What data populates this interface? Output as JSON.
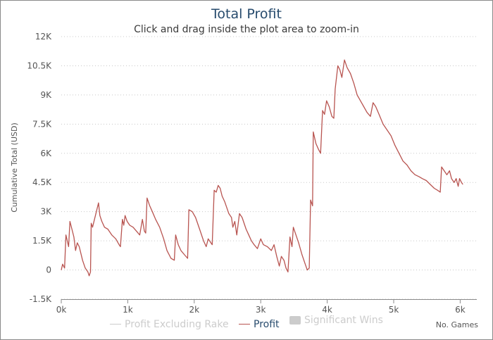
{
  "chart_data": {
    "type": "line",
    "title": "Total Profit",
    "subtitle": "Click and drag inside the plot area to zoom-in",
    "ylabel": "Cumulative Total (USD)",
    "xlabel": "No. Games",
    "ylim": [
      -1500,
      12000
    ],
    "xlim": [
      0,
      6250
    ],
    "yticks": [
      {
        "value": 12000,
        "label": "12K"
      },
      {
        "value": 10500,
        "label": "10.5K"
      },
      {
        "value": 9000,
        "label": "9K"
      },
      {
        "value": 7500,
        "label": "7.5K"
      },
      {
        "value": 6000,
        "label": "6K"
      },
      {
        "value": 4500,
        "label": "4.5K"
      },
      {
        "value": 3000,
        "label": "3K"
      },
      {
        "value": 1500,
        "label": "1.5K"
      },
      {
        "value": 0,
        "label": "0"
      },
      {
        "value": -1500,
        "label": "-1.5K"
      }
    ],
    "xticks": [
      {
        "value": 0,
        "label": "0k"
      },
      {
        "value": 1000,
        "label": "1k"
      },
      {
        "value": 2000,
        "label": "2k"
      },
      {
        "value": 3000,
        "label": "3k"
      },
      {
        "value": 4000,
        "label": "4k"
      },
      {
        "value": 5000,
        "label": "5k"
      },
      {
        "value": 6000,
        "label": "6k"
      }
    ],
    "grid": true,
    "legend_position": "bottom",
    "legend": [
      {
        "name": "Profit Excluding Rake",
        "color": "#cccccc",
        "symbol": "line",
        "active": false
      },
      {
        "name": "Profit",
        "color": "#b85450",
        "symbol": "line",
        "active": true
      },
      {
        "name": "Significant Wins",
        "color": "#cccccc",
        "symbol": "box",
        "active": false
      }
    ],
    "series": [
      {
        "name": "Profit",
        "color": "#b85450",
        "points": [
          [
            0,
            0
          ],
          [
            20,
            300
          ],
          [
            50,
            100
          ],
          [
            70,
            1800
          ],
          [
            110,
            1200
          ],
          [
            130,
            2500
          ],
          [
            160,
            2100
          ],
          [
            190,
            1700
          ],
          [
            215,
            1000
          ],
          [
            240,
            1400
          ],
          [
            270,
            1200
          ],
          [
            320,
            500
          ],
          [
            360,
            100
          ],
          [
            400,
            -100
          ],
          [
            420,
            -300
          ],
          [
            440,
            -100
          ],
          [
            450,
            2400
          ],
          [
            470,
            2200
          ],
          [
            560,
            3450
          ],
          [
            580,
            2800
          ],
          [
            610,
            2500
          ],
          [
            650,
            2200
          ],
          [
            700,
            2100
          ],
          [
            760,
            1800
          ],
          [
            820,
            1600
          ],
          [
            870,
            1300
          ],
          [
            890,
            1200
          ],
          [
            920,
            2600
          ],
          [
            940,
            2300
          ],
          [
            960,
            2800
          ],
          [
            990,
            2500
          ],
          [
            1030,
            2300
          ],
          [
            1080,
            2200
          ],
          [
            1130,
            2000
          ],
          [
            1180,
            1800
          ],
          [
            1220,
            2600
          ],
          [
            1250,
            2000
          ],
          [
            1270,
            1900
          ],
          [
            1290,
            3700
          ],
          [
            1330,
            3300
          ],
          [
            1370,
            3000
          ],
          [
            1420,
            2600
          ],
          [
            1480,
            2200
          ],
          [
            1540,
            1600
          ],
          [
            1590,
            1000
          ],
          [
            1650,
            600
          ],
          [
            1700,
            500
          ],
          [
            1720,
            1800
          ],
          [
            1760,
            1300
          ],
          [
            1800,
            1000
          ],
          [
            1850,
            800
          ],
          [
            1900,
            600
          ],
          [
            1920,
            3100
          ],
          [
            1970,
            3000
          ],
          [
            2020,
            2700
          ],
          [
            2080,
            2100
          ],
          [
            2140,
            1500
          ],
          [
            2180,
            1200
          ],
          [
            2210,
            1600
          ],
          [
            2250,
            1400
          ],
          [
            2270,
            1300
          ],
          [
            2300,
            4100
          ],
          [
            2330,
            4000
          ],
          [
            2360,
            4350
          ],
          [
            2390,
            4200
          ],
          [
            2420,
            3800
          ],
          [
            2460,
            3500
          ],
          [
            2520,
            2900
          ],
          [
            2560,
            2700
          ],
          [
            2580,
            2200
          ],
          [
            2610,
            2500
          ],
          [
            2640,
            1800
          ],
          [
            2680,
            2900
          ],
          [
            2720,
            2700
          ],
          [
            2780,
            2100
          ],
          [
            2820,
            1800
          ],
          [
            2860,
            1500
          ],
          [
            2900,
            1300
          ],
          [
            2950,
            1100
          ],
          [
            3000,
            1600
          ],
          [
            3040,
            1300
          ],
          [
            3100,
            1200
          ],
          [
            3160,
            1000
          ],
          [
            3200,
            1300
          ],
          [
            3240,
            700
          ],
          [
            3280,
            200
          ],
          [
            3310,
            700
          ],
          [
            3350,
            500
          ],
          [
            3380,
            100
          ],
          [
            3410,
            -100
          ],
          [
            3440,
            1700
          ],
          [
            3470,
            1200
          ],
          [
            3490,
            2200
          ],
          [
            3520,
            1900
          ],
          [
            3570,
            1400
          ],
          [
            3620,
            800
          ],
          [
            3670,
            300
          ],
          [
            3700,
            0
          ],
          [
            3730,
            100
          ],
          [
            3750,
            3600
          ],
          [
            3780,
            3300
          ],
          [
            3790,
            7100
          ],
          [
            3830,
            6500
          ],
          [
            3870,
            6200
          ],
          [
            3900,
            6000
          ],
          [
            3930,
            8200
          ],
          [
            3960,
            8000
          ],
          [
            3990,
            8700
          ],
          [
            4030,
            8400
          ],
          [
            4070,
            7900
          ],
          [
            4100,
            7800
          ],
          [
            4120,
            9300
          ],
          [
            4160,
            10500
          ],
          [
            4190,
            10300
          ],
          [
            4220,
            9900
          ],
          [
            4260,
            10800
          ],
          [
            4300,
            10400
          ],
          [
            4350,
            10100
          ],
          [
            4400,
            9600
          ],
          [
            4450,
            9000
          ],
          [
            4500,
            8700
          ],
          [
            4550,
            8400
          ],
          [
            4600,
            8100
          ],
          [
            4650,
            7900
          ],
          [
            4690,
            8600
          ],
          [
            4730,
            8400
          ],
          [
            4780,
            8000
          ],
          [
            4840,
            7500
          ],
          [
            4900,
            7200
          ],
          [
            4960,
            6900
          ],
          [
            5020,
            6400
          ],
          [
            5080,
            6000
          ],
          [
            5140,
            5600
          ],
          [
            5200,
            5400
          ],
          [
            5260,
            5100
          ],
          [
            5320,
            4900
          ],
          [
            5380,
            4800
          ],
          [
            5430,
            4700
          ],
          [
            5490,
            4600
          ],
          [
            5550,
            4400
          ],
          [
            5610,
            4200
          ],
          [
            5660,
            4100
          ],
          [
            5700,
            4000
          ],
          [
            5720,
            5300
          ],
          [
            5760,
            5100
          ],
          [
            5800,
            4900
          ],
          [
            5840,
            5100
          ],
          [
            5870,
            4700
          ],
          [
            5910,
            4500
          ],
          [
            5940,
            4700
          ],
          [
            5970,
            4300
          ],
          [
            5990,
            4700
          ],
          [
            6020,
            4500
          ],
          [
            6040,
            4400
          ]
        ]
      }
    ]
  }
}
